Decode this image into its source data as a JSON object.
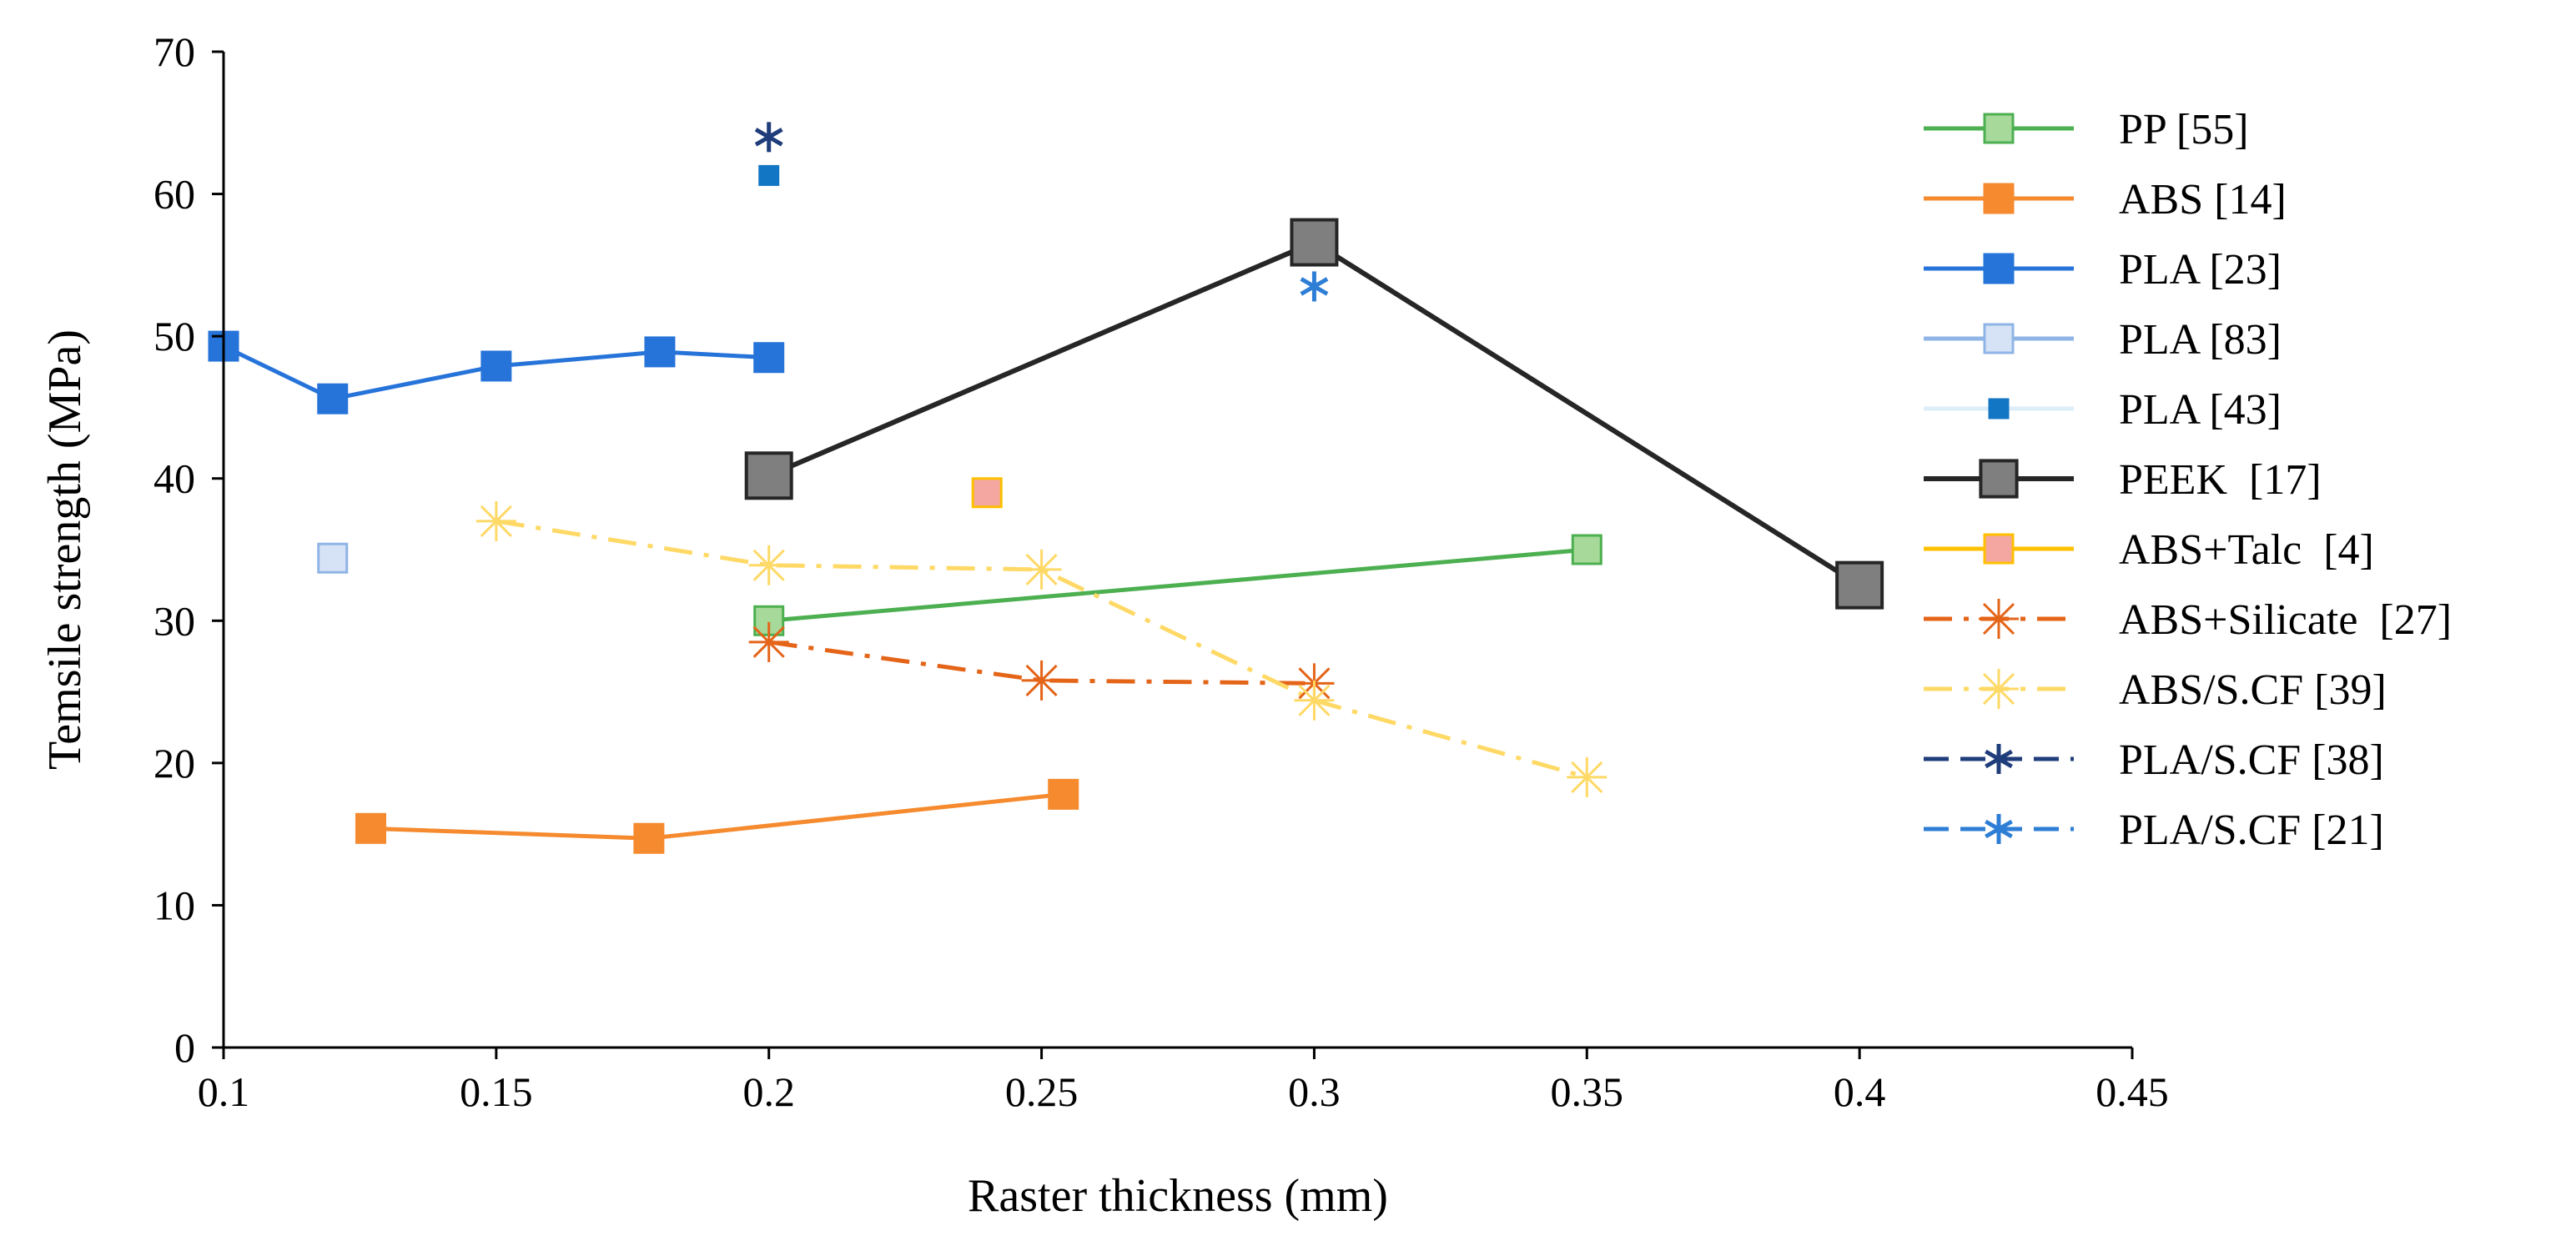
{
  "chart_data": {
    "type": "line",
    "title": "",
    "xlabel": "Raster thickness (mm)",
    "ylabel": "Temsile strength (MPa)",
    "xlim": [
      0.1,
      0.45
    ],
    "ylim": [
      0,
      70
    ],
    "x_ticks": [
      0.1,
      0.15,
      0.2,
      0.25,
      0.3,
      0.35,
      0.4,
      0.45
    ],
    "x_tick_labels": [
      "0.1",
      "0.15",
      "0.2",
      "0.25",
      "0.3",
      "0.35",
      "0.4",
      "0.45"
    ],
    "y_ticks": [
      0,
      10,
      20,
      30,
      40,
      50,
      60,
      70
    ],
    "y_tick_labels": [
      "0",
      "10",
      "20",
      "30",
      "40",
      "50",
      "60",
      "70"
    ],
    "grid": false,
    "legend_position": "right",
    "series": [
      {
        "name": "PP [55]",
        "x": [
          0.2,
          0.35
        ],
        "y": [
          30,
          35
        ],
        "color": "#4CAF50",
        "fill": "#a6d99a",
        "marker": "square",
        "dash": "solid"
      },
      {
        "name": "ABS [14]",
        "x": [
          0.127,
          0.178,
          0.254
        ],
        "y": [
          15.4,
          14.7,
          17.8
        ],
        "color": "#F58A2E",
        "fill": "#F58A2E",
        "marker": "square",
        "dash": "solid"
      },
      {
        "name": "PLA [23]",
        "x": [
          0.1,
          0.12,
          0.15,
          0.18,
          0.2
        ],
        "y": [
          49.3,
          45.6,
          47.9,
          48.9,
          48.5
        ],
        "color": "#2673D9",
        "fill": "#2673D9",
        "marker": "square",
        "dash": "solid"
      },
      {
        "name": "PLA [83]",
        "x": [
          0.12
        ],
        "y": [
          34.4
        ],
        "color": "#8FB4E6",
        "fill": "#d6e3f6",
        "marker": "square",
        "dash": "solid"
      },
      {
        "name": "PLA [43]",
        "x": [
          0.2
        ],
        "y": [
          61.3
        ],
        "color": "#DDEEF9",
        "fill": "#1376C4",
        "marker": "small-square",
        "dash": "solid"
      },
      {
        "name": "PEEK  [17]",
        "x": [
          0.2,
          0.3,
          0.4
        ],
        "y": [
          40.2,
          56.6,
          32.5
        ],
        "color": "#262626",
        "fill": "#7f7f7f",
        "marker": "big-square",
        "dash": "solid"
      },
      {
        "name": "ABS+Talc  [4]",
        "x": [
          0.24
        ],
        "y": [
          39
        ],
        "color": "#FFC000",
        "fill": "#F4A6A0",
        "marker": "square",
        "dash": "solid"
      },
      {
        "name": "ABS+Silicate  [27]",
        "x": [
          0.2,
          0.25,
          0.3
        ],
        "y": [
          28.5,
          25.8,
          25.6
        ],
        "color": "#E46418",
        "fill": "none",
        "marker": "star",
        "dash": "dashdot"
      },
      {
        "name": "ABS/S.CF [39]",
        "x": [
          0.15,
          0.2,
          0.25,
          0.3,
          0.35
        ],
        "y": [
          37,
          33.9,
          33.6,
          24.4,
          19
        ],
        "color": "#FFD966",
        "fill": "none",
        "marker": "star",
        "dash": "dashdot"
      },
      {
        "name": "PLA/S.CF [38]",
        "x": [
          0.2
        ],
        "y": [
          64
        ],
        "color": "#1F3D7A",
        "fill": "none",
        "marker": "asterisk",
        "dash": "dash"
      },
      {
        "name": "PLA/S.CF [21]",
        "x": [
          0.3
        ],
        "y": [
          53.5
        ],
        "color": "#2E7ED6",
        "fill": "none",
        "marker": "asterisk",
        "dash": "dash"
      }
    ]
  }
}
